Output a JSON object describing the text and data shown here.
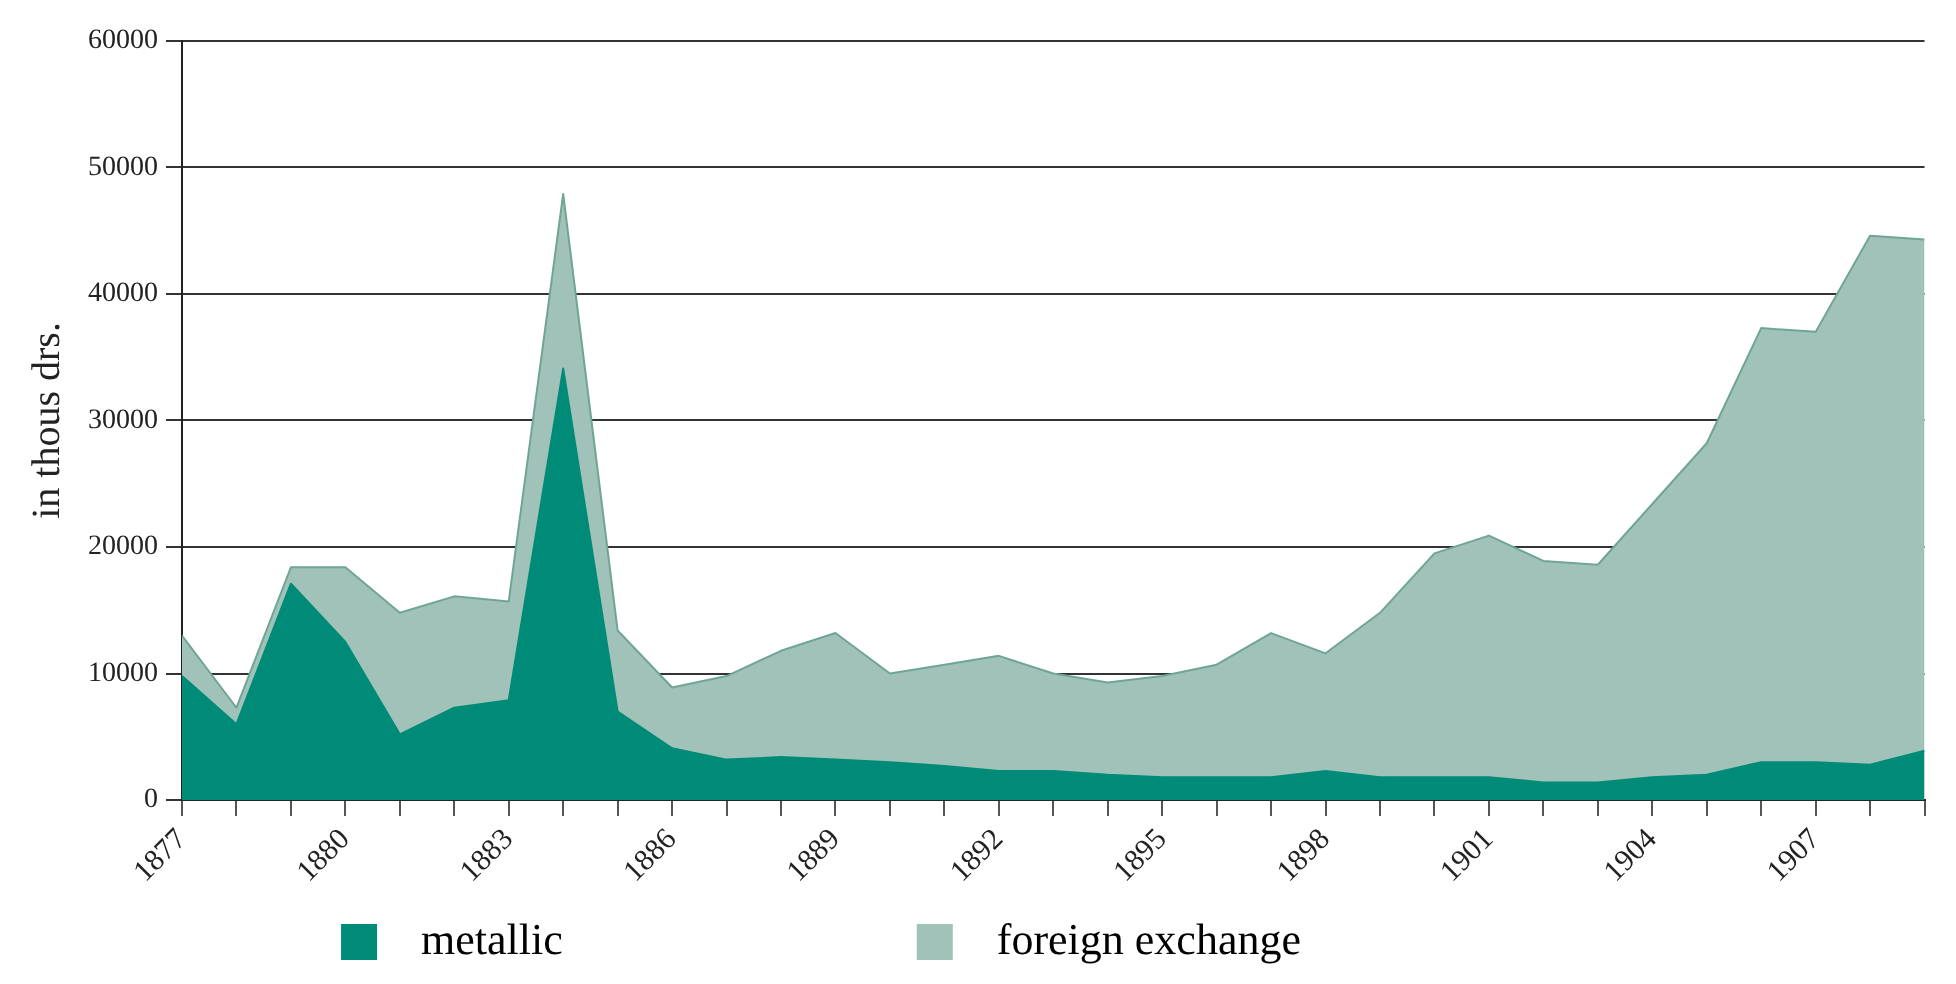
{
  "chart_data": {
    "type": "area",
    "stacked": true,
    "ylabel": "in thous drs.",
    "x": [
      1877,
      1878,
      1879,
      1880,
      1881,
      1882,
      1883,
      1884,
      1885,
      1886,
      1887,
      1888,
      1889,
      1890,
      1891,
      1892,
      1893,
      1894,
      1895,
      1896,
      1897,
      1898,
      1899,
      1900,
      1901,
      1902,
      1903,
      1904,
      1905,
      1906,
      1907,
      1908,
      1909
    ],
    "series": [
      {
        "name": "metallic",
        "color": "#008b78",
        "values": [
          9800,
          6000,
          17100,
          12500,
          5200,
          7300,
          7900,
          34100,
          7000,
          4100,
          3200,
          3400,
          3200,
          3000,
          2700,
          2300,
          2300,
          2000,
          1800,
          1800,
          1800,
          2300,
          1800,
          1800,
          1800,
          1400,
          1400,
          1800,
          2000,
          3000,
          3000,
          2800,
          3900
        ]
      },
      {
        "name": "foreign exchange",
        "color": "#a0c2b8",
        "values": [
          3200,
          1300,
          1300,
          5900,
          9600,
          8800,
          7800,
          13800,
          6400,
          4800,
          6600,
          8400,
          10000,
          7000,
          8000,
          9100,
          7700,
          7300,
          8000,
          8900,
          11400,
          9300,
          13000,
          17700,
          19100,
          17500,
          17200,
          21600,
          26200,
          34300,
          34000,
          41800,
          40400
        ]
      }
    ],
    "xlim": [
      1877,
      1909
    ],
    "xticks": [
      1877,
      {
        "value": 1878,
        "label": null
      },
      {
        "value": 1879,
        "label": null
      },
      1880,
      {
        "value": 1881,
        "label": null
      },
      {
        "value": 1882,
        "label": null
      },
      1883,
      {
        "value": 1884,
        "label": null
      },
      {
        "value": 1885,
        "label": null
      },
      1886,
      {
        "value": 1887,
        "label": null
      },
      {
        "value": 1888,
        "label": null
      },
      1889,
      {
        "value": 1890,
        "label": null
      },
      {
        "value": 1891,
        "label": null
      },
      1892,
      {
        "value": 1893,
        "label": null
      },
      {
        "value": 1894,
        "label": null
      },
      1895,
      {
        "value": 1896,
        "label": null
      },
      {
        "value": 1897,
        "label": null
      },
      1898,
      {
        "value": 1899,
        "label": null
      },
      {
        "value": 1900,
        "label": null
      },
      1901,
      {
        "value": 1902,
        "label": null
      },
      {
        "value": 1903,
        "label": null
      },
      1904,
      {
        "value": 1905,
        "label": null
      },
      {
        "value": 1906,
        "label": null
      },
      1907,
      {
        "value": 1908,
        "label": null
      },
      {
        "value": 1909,
        "label": null
      }
    ],
    "ylim": [
      0,
      60000
    ],
    "yticks": [
      0,
      10000,
      20000,
      30000,
      40000,
      50000,
      60000
    ],
    "grid": "y",
    "legend": "bottom",
    "marker": "none"
  }
}
